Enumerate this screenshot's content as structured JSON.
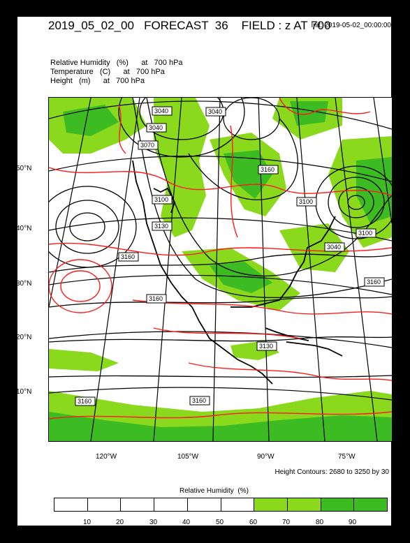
{
  "header": {
    "title": "2019_05_02_00   FORECAST  36    FIELD : z AT 700",
    "init": "Init: 2019-05-02_00:00:00"
  },
  "legend": {
    "line1": "Relative Humidity   (%)      at   700 hPa",
    "line2": "Temperature   (C)      at   700 hPa",
    "line3": "Height   (m)      at   700 hPa"
  },
  "axes": {
    "lat_labels": [
      "50°N",
      "40°N",
      "30°N",
      "20°N",
      "10°N"
    ],
    "lon_labels": [
      "120°W",
      "105°W",
      "90°W",
      "75°W"
    ]
  },
  "height_labels": [
    "3040",
    "3040",
    "3070",
    "3100",
    "3130",
    "3160",
    "3160",
    "3160",
    "3100",
    "3100",
    "3040",
    "3040",
    "3160",
    "3130",
    "3160",
    "3160"
  ],
  "contour_note": "Height Contours: 2680 to 3250 by 30",
  "colorbar": {
    "title": "Relative Humidity  (%)",
    "labels": [
      "10",
      "20",
      "30",
      "40",
      "50",
      "60",
      "70",
      "80",
      "90"
    ],
    "colors": [
      "#ffffff",
      "#ffffff",
      "#ffffff",
      "#ffffff",
      "#ffffff",
      "#ffffff",
      "#8ad91c",
      "#8ad91c",
      "#3cbb22",
      "#3cbb22"
    ]
  },
  "colors": {
    "temperature": "#ff1a1a",
    "humidity_wet": "#8ad91c",
    "humidity_very_wet": "#3cbb22",
    "background": "#000000"
  }
}
